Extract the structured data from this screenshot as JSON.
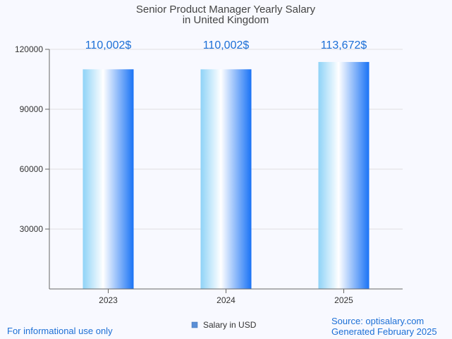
{
  "chart_data": {
    "type": "bar",
    "title": [
      "Senior Product Manager Yearly Salary",
      "in United Kingdom"
    ],
    "categories": [
      "2023",
      "2024",
      "2025"
    ],
    "series": [
      {
        "name": "Salary in USD",
        "values": [
          110002,
          110002,
          113672
        ]
      }
    ],
    "data_labels": [
      "110,002$",
      "110,002$",
      "113,672$"
    ],
    "ylim": [
      0,
      120000
    ],
    "yticks": [
      30000,
      60000,
      90000,
      120000
    ],
    "ytick_labels": [
      "30000",
      "60000",
      "90000",
      "120000"
    ],
    "grid": true,
    "legend": "bottom-center",
    "colors": {
      "bar_light": "#8fd3f7",
      "bar_dark": "#1a73f5",
      "label": "#1c6fd6",
      "grid": "#e0e0e0"
    }
  },
  "footer": {
    "note": "For informational use only",
    "source": "Source: optisalary.com",
    "generated": "Generated February 2025"
  }
}
